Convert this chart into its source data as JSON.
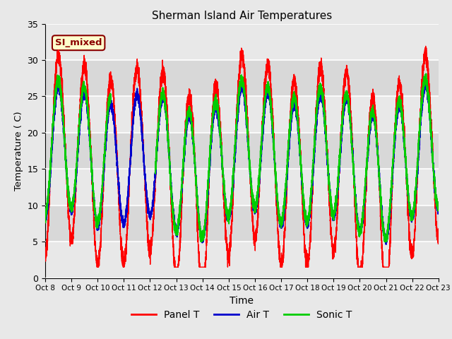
{
  "title": "Sherman Island Air Temperatures",
  "xlabel": "Time",
  "ylabel": "Temperature ( C)",
  "ylim": [
    0,
    35
  ],
  "xlim": [
    0,
    15
  ],
  "fig_bg": "#e8e8e8",
  "plot_bg": "#e0e0e0",
  "grid_color": "#ffffff",
  "annotation_text": "SI_mixed",
  "annotation_fg": "#8b0000",
  "annotation_bg": "#ffffcc",
  "annotation_edge": "#8b0000",
  "legend_labels": [
    "Panel T",
    "Air T",
    "Sonic T"
  ],
  "line_colors": [
    "#ff0000",
    "#0000cc",
    "#00cc00"
  ],
  "tick_labels": [
    "Oct 8",
    "Oct 9",
    "Oct 10",
    "Oct 11",
    "Oct 12",
    "Oct 13",
    "Oct 14",
    "Oct 15",
    "Oct 16",
    "Oct 17",
    "Oct 18",
    "Oct 19",
    "Oct 20",
    "Oct 21",
    "Oct 22",
    "Oct 23"
  ],
  "band_colors": [
    "#e8e8e8",
    "#d8d8d8"
  ]
}
